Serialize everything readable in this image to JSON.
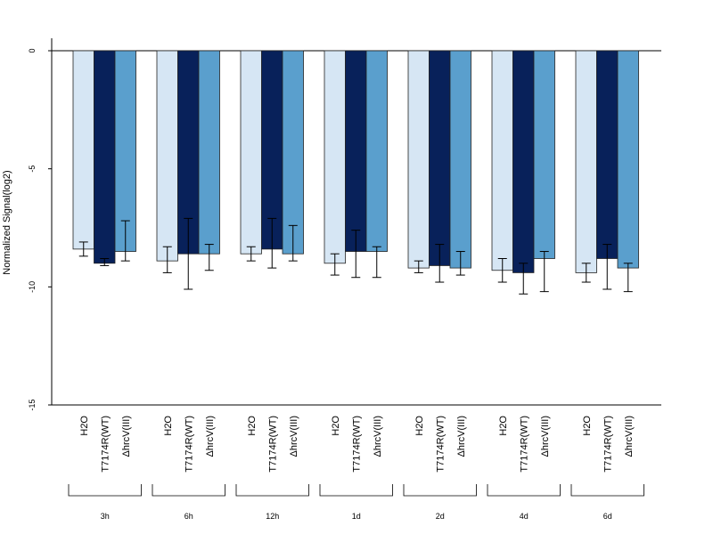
{
  "chart_data": {
    "type": "bar",
    "title": "",
    "xlabel": "",
    "ylabel": "Normalized Signal(log2)",
    "ylim": [
      -15,
      0
    ],
    "yticks": [
      0,
      -5,
      -10,
      -15
    ],
    "grid": false,
    "legend": "none",
    "groups": [
      "3h",
      "6h",
      "12h",
      "1d",
      "2d",
      "4d",
      "6d"
    ],
    "bar_labels": [
      "H2O",
      "T7174R(WT)",
      "ΔhrcV(III)"
    ],
    "colors": [
      "#d6e6f4",
      "#08215a",
      "#5a9fcd"
    ],
    "series": [
      {
        "values": [
          -8.4,
          -8.9,
          -8.6,
          -9.0,
          -9.2,
          -9.3,
          -9.4
        ],
        "err_low": [
          -8.7,
          -9.4,
          -8.9,
          -9.5,
          -9.4,
          -9.8,
          -9.8
        ],
        "err_high": [
          -8.1,
          -8.3,
          -8.3,
          -8.6,
          -8.9,
          -8.8,
          -9.0
        ]
      },
      {
        "values": [
          -9.0,
          -8.6,
          -8.4,
          -8.5,
          -9.1,
          -9.4,
          -8.8
        ],
        "err_low": [
          -9.1,
          -10.1,
          -9.2,
          -9.6,
          -9.8,
          -10.3,
          -10.1
        ],
        "err_high": [
          -8.8,
          -7.1,
          -7.1,
          -7.6,
          -8.2,
          -9.0,
          -8.2
        ]
      },
      {
        "values": [
          -8.5,
          -8.6,
          -8.6,
          -8.5,
          -9.2,
          -8.8,
          -9.2
        ],
        "err_low": [
          -8.9,
          -9.3,
          -8.9,
          -9.6,
          -9.5,
          -10.2,
          -10.2
        ],
        "err_high": [
          -7.2,
          -8.2,
          -7.4,
          -8.3,
          -8.5,
          -8.5,
          -9.0
        ]
      }
    ]
  }
}
